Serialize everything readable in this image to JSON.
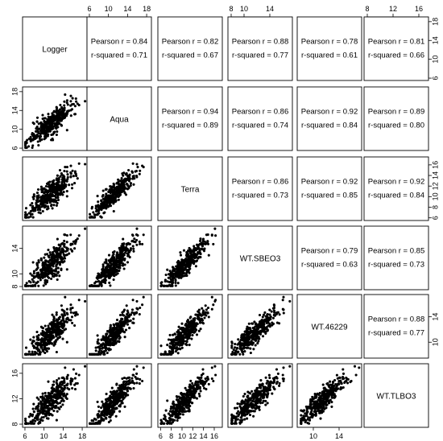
{
  "chart_data": {
    "type": "scatter",
    "layout": "pairs-matrix",
    "variables": [
      "Logger",
      "Aqua",
      "Terra",
      "WT.SBEO3",
      "WT.46229",
      "WT.TLBO3"
    ],
    "axis_ticks": {
      "Logger": [
        6,
        10,
        14,
        18
      ],
      "Aqua": [
        6,
        10,
        14,
        18
      ],
      "Terra": [
        6,
        8,
        10,
        12,
        14,
        16
      ],
      "WT.SBEO3": [
        8,
        10,
        14
      ],
      "WT.46229": [
        10,
        14
      ],
      "WT.TLBO3": [
        8,
        12,
        16
      ]
    },
    "axis_ranges": {
      "Logger": [
        5.5,
        19
      ],
      "Aqua": [
        5.5,
        19
      ],
      "Terra": [
        5.5,
        17.5
      ],
      "WT.SBEO3": [
        7.5,
        17.5
      ],
      "WT.46229": [
        7.5,
        17.5
      ],
      "WT.TLBO3": [
        7.5,
        17.5
      ]
    },
    "correlations": [
      {
        "row": "Logger",
        "col": "Aqua",
        "pearson_label": "Pearson r = 0.84",
        "rsq_label": "r-squared = 0.71"
      },
      {
        "row": "Logger",
        "col": "Terra",
        "pearson_label": "Pearson r = 0.82",
        "rsq_label": "r-squared = 0.67"
      },
      {
        "row": "Logger",
        "col": "WT.SBEO3",
        "pearson_label": "Pearson r = 0.88",
        "rsq_label": "r-squared = 0.77"
      },
      {
        "row": "Logger",
        "col": "WT.46229",
        "pearson_label": "Pearson r = 0.78",
        "rsq_label": "r-squared = 0.61"
      },
      {
        "row": "Logger",
        "col": "WT.TLBO3",
        "pearson_label": "Pearson r = 0.81",
        "rsq_label": "r-squared = 0.66"
      },
      {
        "row": "Aqua",
        "col": "Terra",
        "pearson_label": "Pearson r = 0.94",
        "rsq_label": "r-squared = 0.89"
      },
      {
        "row": "Aqua",
        "col": "WT.SBEO3",
        "pearson_label": "Pearson r = 0.86",
        "rsq_label": "r-squared = 0.74"
      },
      {
        "row": "Aqua",
        "col": "WT.46229",
        "pearson_label": "Pearson r = 0.92",
        "rsq_label": "r-squared = 0.84"
      },
      {
        "row": "Aqua",
        "col": "WT.TLBO3",
        "pearson_label": "Pearson r = 0.89",
        "rsq_label": "r-squared = 0.80"
      },
      {
        "row": "Terra",
        "col": "WT.SBEO3",
        "pearson_label": "Pearson r = 0.86",
        "rsq_label": "r-squared = 0.73"
      },
      {
        "row": "Terra",
        "col": "WT.46229",
        "pearson_label": "Pearson r = 0.92",
        "rsq_label": "r-squared = 0.85"
      },
      {
        "row": "Terra",
        "col": "WT.TLBO3",
        "pearson_label": "Pearson r = 0.92",
        "rsq_label": "r-squared = 0.84"
      },
      {
        "row": "WT.SBEO3",
        "col": "WT.46229",
        "pearson_label": "Pearson r = 0.79",
        "rsq_label": "r-squared = 0.63"
      },
      {
        "row": "WT.SBEO3",
        "col": "WT.TLBO3",
        "pearson_label": "Pearson r = 0.85",
        "rsq_label": "r-squared = 0.73"
      },
      {
        "row": "WT.46229",
        "col": "WT.TLBO3",
        "pearson_label": "Pearson r = 0.88",
        "rsq_label": "r-squared = 0.77"
      }
    ],
    "point_color": "#000000",
    "grid": false,
    "legend": "none",
    "title": "",
    "xlabel": "",
    "ylabel": ""
  }
}
